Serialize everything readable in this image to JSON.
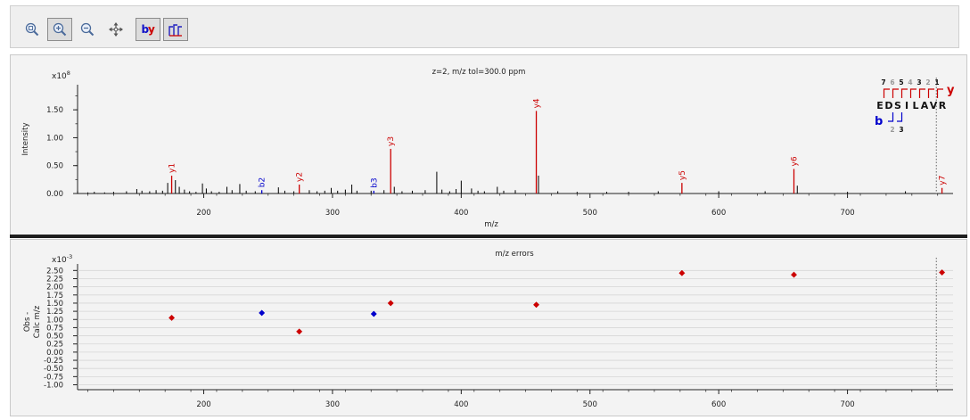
{
  "toolbar": {
    "buttons": [
      {
        "name": "zoom-reset-button",
        "icon": "zoom-reset-icon",
        "active": false
      },
      {
        "name": "zoom-in-button",
        "icon": "zoom-in-icon",
        "active": true
      },
      {
        "name": "zoom-out-button",
        "icon": "zoom-out-icon",
        "active": false
      },
      {
        "name": "pan-button",
        "icon": "pan-arrows-icon",
        "active": false
      },
      {
        "name": "by-ions-toggle",
        "icon": "by-ions-icon",
        "active": true
      },
      {
        "name": "peak-labels-toggle",
        "icon": "peak-labels-icon",
        "active": true
      }
    ]
  },
  "chart_data": [
    {
      "type": "bar",
      "title": "z=2, m/z tol=300.0 ppm",
      "xlabel": "m/z",
      "ylabel": "Intensity",
      "y_multiplier": "x10",
      "y_exponent": "8",
      "xlim": [
        102,
        782
      ],
      "ylim": [
        0,
        1.95
      ],
      "xticks": [
        "200",
        "300",
        "400",
        "500",
        "600",
        "700"
      ],
      "yticks": [
        "0.00",
        "0.50",
        "1.00",
        "1.50"
      ],
      "colors": {
        "peak": "#000000",
        "y_ion": "#cc0000",
        "b_ion": "#0000cc",
        "axis": "#222222"
      },
      "peaks": [
        [
          102,
          0.05
        ],
        [
          110,
          0.02
        ],
        [
          115,
          0.03
        ],
        [
          123,
          0.02
        ],
        [
          130,
          0.03
        ],
        [
          140,
          0.04
        ],
        [
          148,
          0.08
        ],
        [
          152,
          0.05
        ],
        [
          158,
          0.04
        ],
        [
          163,
          0.06
        ],
        [
          168,
          0.05
        ],
        [
          172,
          0.19
        ],
        [
          178,
          0.24
        ],
        [
          181,
          0.12
        ],
        [
          185,
          0.07
        ],
        [
          189,
          0.04
        ],
        [
          194,
          0.03
        ],
        [
          199,
          0.18
        ],
        [
          202,
          0.09
        ],
        [
          206,
          0.04
        ],
        [
          212,
          0.03
        ],
        [
          218,
          0.12
        ],
        [
          222,
          0.06
        ],
        [
          228,
          0.17
        ],
        [
          233,
          0.05
        ],
        [
          240,
          0.04
        ],
        [
          258,
          0.11
        ],
        [
          263,
          0.05
        ],
        [
          270,
          0.04
        ],
        [
          282,
          0.06
        ],
        [
          288,
          0.04
        ],
        [
          294,
          0.05
        ],
        [
          299,
          0.1
        ],
        [
          304,
          0.05
        ],
        [
          310,
          0.07
        ],
        [
          315,
          0.16
        ],
        [
          319,
          0.05
        ],
        [
          330,
          0.05
        ],
        [
          340,
          0.06
        ],
        [
          348,
          0.12
        ],
        [
          354,
          0.04
        ],
        [
          362,
          0.05
        ],
        [
          372,
          0.06
        ],
        [
          381,
          0.39
        ],
        [
          385,
          0.07
        ],
        [
          391,
          0.04
        ],
        [
          396,
          0.08
        ],
        [
          400,
          0.23
        ],
        [
          408,
          0.09
        ],
        [
          413,
          0.05
        ],
        [
          418,
          0.04
        ],
        [
          428,
          0.12
        ],
        [
          433,
          0.05
        ],
        [
          442,
          0.06
        ],
        [
          460,
          0.32
        ],
        [
          475,
          0.04
        ],
        [
          490,
          0.03
        ],
        [
          513,
          0.03
        ],
        [
          530,
          0.03
        ],
        [
          553,
          0.04
        ],
        [
          600,
          0.04
        ],
        [
          636,
          0.04
        ],
        [
          661,
          0.14
        ],
        [
          700,
          0.03
        ],
        [
          745,
          0.04
        ]
      ],
      "ions": [
        {
          "label": "y1",
          "x": 175.1,
          "y": 0.32,
          "type": "y"
        },
        {
          "label": "b2",
          "x": 245.1,
          "y": 0.06,
          "type": "b"
        },
        {
          "label": "y2",
          "x": 274.2,
          "y": 0.16,
          "type": "y"
        },
        {
          "label": "b3",
          "x": 332.1,
          "y": 0.05,
          "type": "b"
        },
        {
          "label": "y3",
          "x": 345.2,
          "y": 0.8,
          "type": "y"
        },
        {
          "label": "y4",
          "x": 458.3,
          "y": 1.48,
          "type": "y"
        },
        {
          "label": "y5",
          "x": 571.4,
          "y": 0.19,
          "type": "y"
        },
        {
          "label": "y6",
          "x": 658.4,
          "y": 0.44,
          "type": "y"
        },
        {
          "label": "y7",
          "x": 773.4,
          "y": 0.1,
          "type": "y"
        }
      ],
      "precursor_mz": 769,
      "sequence": {
        "residues": [
          "E",
          "D",
          "S",
          "I",
          "L",
          "A",
          "V",
          "R"
        ],
        "y_numbers": [
          "7",
          "6",
          "5",
          "4",
          "3",
          "2",
          "1"
        ],
        "b_numbers": [
          "2",
          "3"
        ],
        "y_letter": "y",
        "b_letter": "b"
      }
    },
    {
      "type": "scatter",
      "title": "m/z errors",
      "xlabel": "m/z",
      "ylabel_line1": "Obs -",
      "ylabel_line2": "Calc m/z",
      "y_multiplier": "x10",
      "y_exponent": "-3",
      "xlim": [
        102,
        782
      ],
      "ylim": [
        -1.15,
        2.7
      ],
      "xticks": [
        "200",
        "300",
        "400",
        "500",
        "600",
        "700"
      ],
      "yticks": [
        "-1.00",
        "-0.75",
        "-0.50",
        "-0.25",
        "0.00",
        "0.25",
        "0.50",
        "0.75",
        "1.00",
        "1.25",
        "1.50",
        "1.75",
        "2.00",
        "2.25",
        "2.50"
      ],
      "points": [
        {
          "x": 175.1,
          "y": 1.05,
          "type": "y"
        },
        {
          "x": 245.1,
          "y": 1.2,
          "type": "b"
        },
        {
          "x": 274.2,
          "y": 0.63,
          "type": "y"
        },
        {
          "x": 332.1,
          "y": 1.17,
          "type": "b"
        },
        {
          "x": 345.2,
          "y": 1.5,
          "type": "y"
        },
        {
          "x": 458.3,
          "y": 1.45,
          "type": "y"
        },
        {
          "x": 571.4,
          "y": 2.42,
          "type": "y"
        },
        {
          "x": 658.4,
          "y": 2.37,
          "type": "y"
        },
        {
          "x": 773.4,
          "y": 2.44,
          "type": "y"
        }
      ],
      "precursor_mz": 769
    }
  ]
}
